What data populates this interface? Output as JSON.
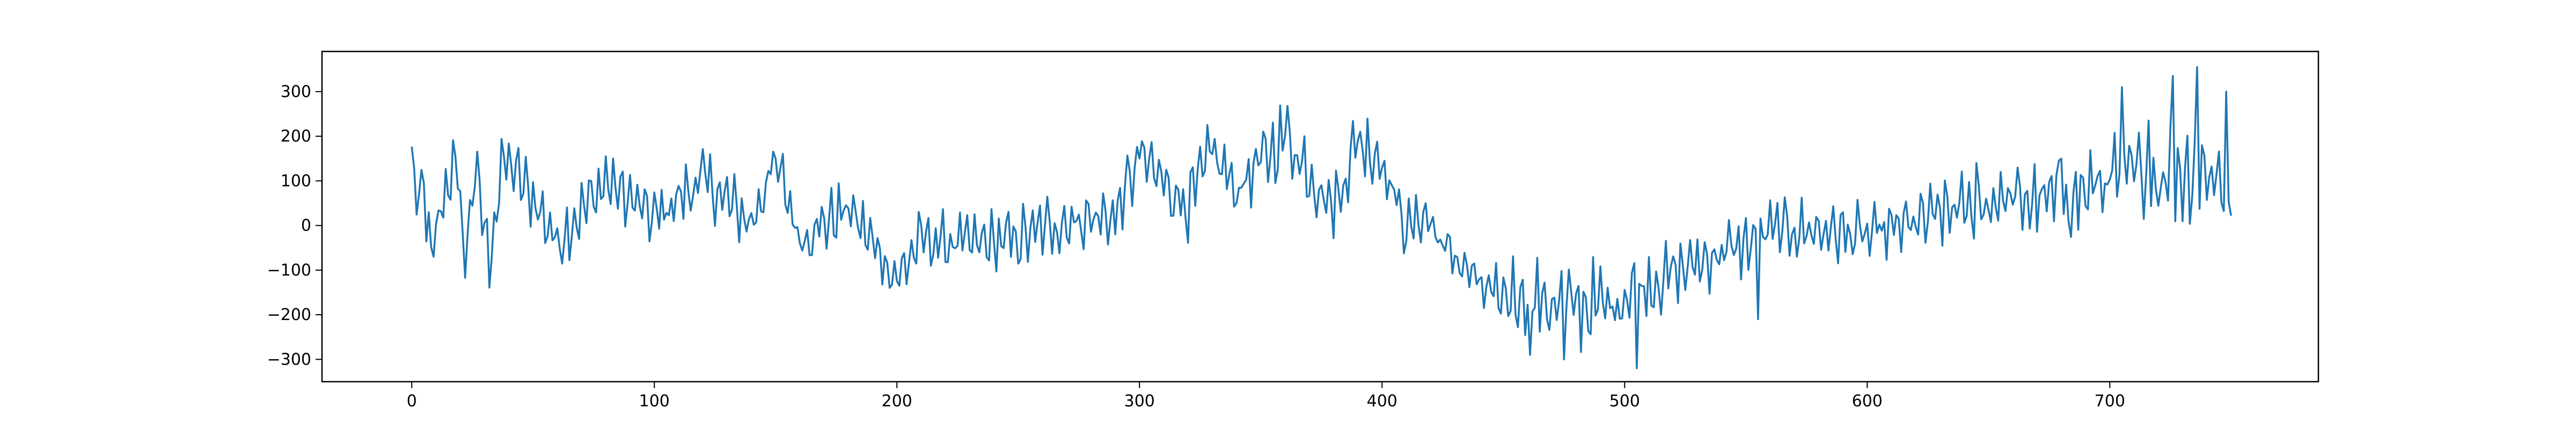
{
  "chart_data": {
    "type": "line",
    "title": "",
    "xlabel": "",
    "ylabel": "",
    "xlim": [
      -37,
      786
    ],
    "ylim": [
      -350,
      390
    ],
    "grid": false,
    "legend": "none",
    "xticks": [
      0,
      100,
      200,
      300,
      400,
      500,
      600,
      700
    ],
    "yticks": [
      -300,
      -200,
      -100,
      0,
      100,
      200,
      300
    ],
    "series": [
      {
        "color": "#1f77b4",
        "keypoints": [
          [
            0,
            165
          ],
          [
            2,
            40
          ],
          [
            5,
            85
          ],
          [
            8,
            -85
          ],
          [
            12,
            40
          ],
          [
            18,
            155
          ],
          [
            22,
            -80
          ],
          [
            26,
            130
          ],
          [
            32,
            -75
          ],
          [
            38,
            155
          ],
          [
            50,
            60
          ],
          [
            60,
            -35
          ],
          [
            80,
            100
          ],
          [
            100,
            15
          ],
          [
            120,
            105
          ],
          [
            140,
            5
          ],
          [
            150,
            150
          ],
          [
            160,
            -30
          ],
          [
            180,
            40
          ],
          [
            200,
            -120
          ],
          [
            210,
            -30
          ],
          [
            220,
            -40
          ],
          [
            235,
            -40
          ],
          [
            250,
            -30
          ],
          [
            270,
            10
          ],
          [
            290,
            20
          ],
          [
            300,
            150
          ],
          [
            320,
            45
          ],
          [
            330,
            160
          ],
          [
            340,
            80
          ],
          [
            360,
            200
          ],
          [
            380,
            40
          ],
          [
            390,
            190
          ],
          [
            400,
            150
          ],
          [
            410,
            -10
          ],
          [
            418,
            25
          ],
          [
            425,
            -45
          ],
          [
            435,
            -100
          ],
          [
            445,
            -165
          ],
          [
            455,
            -150
          ],
          [
            465,
            -170
          ],
          [
            475,
            -180
          ],
          [
            485,
            -180
          ],
          [
            495,
            -175
          ],
          [
            505,
            -140
          ],
          [
            515,
            -120
          ],
          [
            525,
            -95
          ],
          [
            540,
            -60
          ],
          [
            550,
            -45
          ],
          [
            560,
            -10
          ],
          [
            580,
            -10
          ],
          [
            600,
            -25
          ],
          [
            620,
            5
          ],
          [
            635,
            35
          ],
          [
            645,
            40
          ],
          [
            655,
            60
          ],
          [
            670,
            55
          ],
          [
            680,
            60
          ],
          [
            690,
            75
          ],
          [
            700,
            105
          ],
          [
            710,
            115
          ],
          [
            720,
            105
          ],
          [
            730,
            120
          ],
          [
            740,
            120
          ],
          [
            745,
            110
          ],
          [
            750,
            60
          ]
        ],
        "spikes": [
          [
            18,
            155
          ],
          [
            38,
            155
          ],
          [
            150,
            150
          ],
          [
            300,
            150
          ],
          [
            330,
            160
          ],
          [
            360,
            200
          ],
          [
            390,
            190
          ],
          [
            461,
            -290
          ],
          [
            475,
            -300
          ],
          [
            505,
            -320
          ],
          [
            555,
            -210
          ],
          [
            630,
            40
          ],
          [
            645,
            140
          ],
          [
            680,
            150
          ],
          [
            705,
            310
          ],
          [
            716,
            235
          ],
          [
            726,
            335
          ],
          [
            736,
            355
          ],
          [
            748,
            300
          ]
        ],
        "amp_low": [
          [
            0,
            70
          ],
          [
            100,
            75
          ],
          [
            200,
            65
          ],
          [
            300,
            80
          ],
          [
            400,
            85
          ],
          [
            420,
            45
          ],
          [
            440,
            65
          ],
          [
            460,
            95
          ],
          [
            480,
            100
          ],
          [
            500,
            95
          ],
          [
            520,
            75
          ],
          [
            560,
            70
          ],
          [
            600,
            70
          ],
          [
            640,
            80
          ],
          [
            680,
            90
          ],
          [
            700,
            110
          ],
          [
            740,
            115
          ],
          [
            750,
            80
          ]
        ]
      }
    ]
  }
}
